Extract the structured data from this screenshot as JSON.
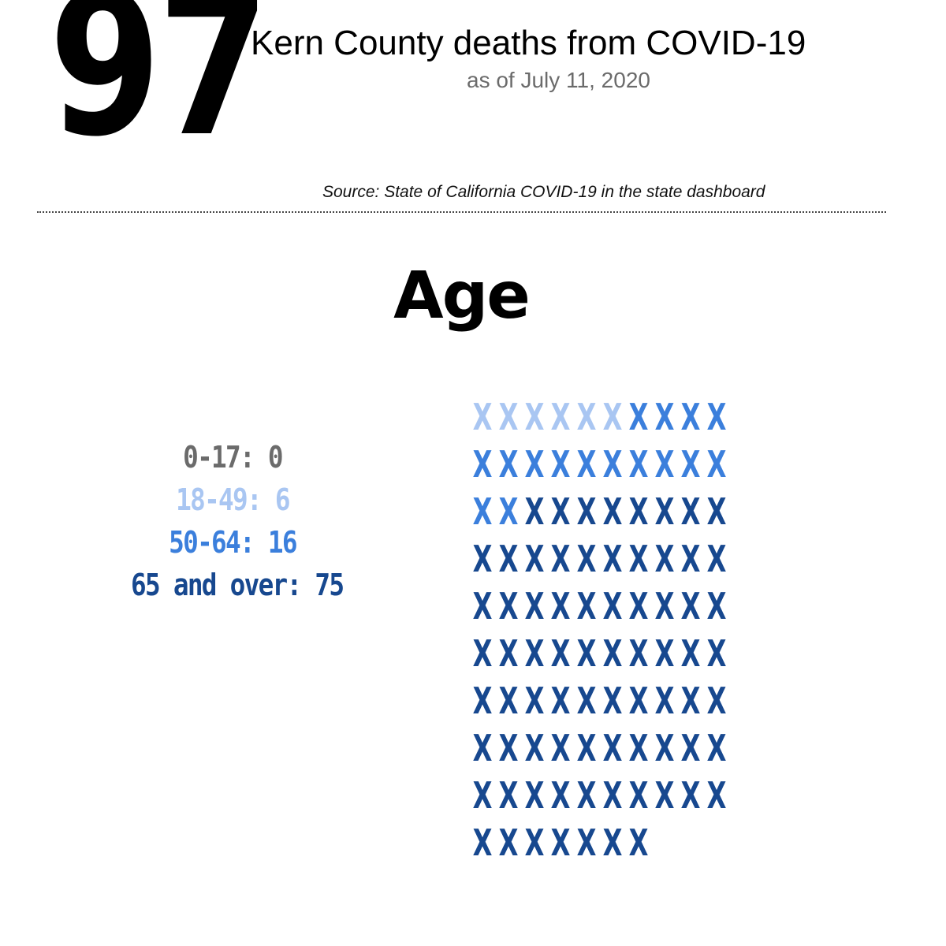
{
  "header": {
    "total_deaths": "97",
    "title": "Kern County deaths from COVID-19",
    "subtitle": "as of July 11, 2020",
    "source": "Source: State of California COVID-19 in the state dashboard"
  },
  "section_title": "Age",
  "legend": [
    {
      "label": "0-17:",
      "value": "0"
    },
    {
      "label": "18-49:",
      "value": "6"
    },
    {
      "label": "50-64:",
      "value": "16"
    },
    {
      "label": "65 and over:",
      "value": "75"
    }
  ],
  "colors": {
    "0-17": "#6b6b6b",
    "18-49": "#a9c6f2",
    "50-64": "#3b7fdc",
    "65 and over": "#17488f"
  },
  "chart_data": {
    "type": "table",
    "title": "Age",
    "categories": [
      "0-17",
      "18-49",
      "50-64",
      "65 and over"
    ],
    "values": [
      0,
      6,
      16,
      75
    ],
    "total": 97,
    "marker": "X",
    "per_row": 10
  }
}
